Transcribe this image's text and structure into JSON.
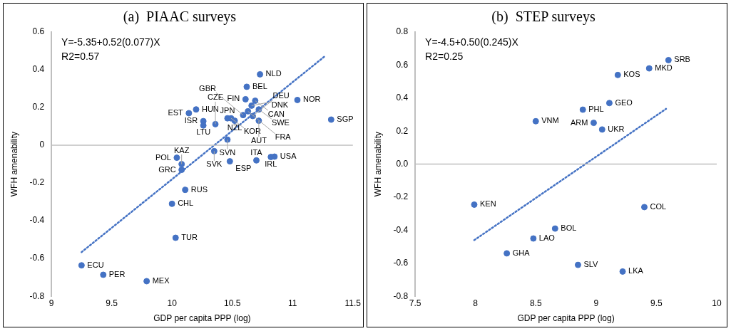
{
  "chart_data": [
    {
      "type": "scatter",
      "title": "(a)  PIAAC surveys",
      "xlabel": "GDP per capita PPP (log)",
      "ylabel": "WFH amenability",
      "xlim": [
        9,
        11.5
      ],
      "xticks": [
        9,
        9.5,
        10,
        10.5,
        11,
        11.5
      ],
      "ylim": [
        -0.8,
        0.6
      ],
      "yticks": [
        -0.8,
        -0.6,
        -0.4,
        -0.2,
        0,
        0.2,
        0.4,
        0.6
      ],
      "grid": false,
      "legend": false,
      "ref_lines": [
        {
          "axis": "y",
          "value": 0,
          "color": "#bfbfbf"
        }
      ],
      "series": [
        {
          "type": "scatter",
          "color": "#4472c4",
          "marker": "circle",
          "x": [
            10.73,
            10.62,
            10.61,
            10.69,
            10.66,
            10.72,
            11.04,
            11.32,
            10.2,
            10.14,
            10.26,
            10.26,
            10.36,
            10.46,
            10.49,
            10.52,
            10.63,
            10.67,
            10.59,
            10.72,
            10.46,
            10.35,
            10.04,
            10.08,
            10.08,
            10.48,
            10.7,
            10.82,
            10.85,
            10.11,
            10.0,
            10.03,
            9.25,
            9.43,
            9.79
          ],
          "values": [
            0.376,
            0.31,
            0.244,
            0.236,
            0.21,
            0.19,
            0.24,
            0.136,
            0.19,
            0.17,
            0.128,
            0.105,
            0.112,
            0.143,
            0.143,
            0.13,
            0.18,
            0.155,
            0.16,
            0.13,
            0.03,
            -0.031,
            -0.066,
            -0.1,
            -0.13,
            -0.085,
            -0.08,
            -0.062,
            -0.06,
            -0.236,
            -0.31,
            -0.49,
            -0.636,
            -0.686,
            -0.72
          ]
        },
        {
          "type": "line",
          "color": "#4472c4",
          "marker": "none",
          "line_style": "dotted",
          "x": [
            9.25,
            11.27
          ],
          "values": [
            -0.566,
            0.473
          ]
        }
      ],
      "annotations": [
        "Y=-5.35+0.52(0.077)X",
        "R2=0.57",
        {
          "text": "NLD",
          "x": 10.73,
          "y": 0.376
        },
        {
          "text": "BEL",
          "x": 10.62,
          "y": 0.31
        },
        {
          "text": "FIN",
          "x": 10.61,
          "y": 0.244
        },
        {
          "text": "CAN",
          "x": 10.69,
          "y": 0.236
        },
        {
          "text": "DNK",
          "x": 10.66,
          "y": 0.21
        },
        {
          "text": "SWE",
          "x": 10.72,
          "y": 0.19
        },
        {
          "text": "NOR",
          "x": 11.04,
          "y": 0.24
        },
        {
          "text": "SGP",
          "x": 11.32,
          "y": 0.136
        },
        {
          "text": "HUN",
          "x": 10.2,
          "y": 0.19
        },
        {
          "text": "EST",
          "x": 10.14,
          "y": 0.17
        },
        {
          "text": "ISR",
          "x": 10.26,
          "y": 0.128
        },
        {
          "text": "LTU",
          "x": 10.26,
          "y": 0.105
        },
        {
          "text": "CZE",
          "x": 10.36,
          "y": 0.112
        },
        {
          "text": "JPN",
          "x": 10.46,
          "y": 0.143
        },
        {
          "text": "KOR",
          "x": 10.49,
          "y": 0.143
        },
        {
          "text": "NZL",
          "x": 10.52,
          "y": 0.13
        },
        {
          "text": "FRA",
          "x": 10.63,
          "y": 0.18
        },
        {
          "text": "DEU",
          "x": 10.67,
          "y": 0.155
        },
        {
          "text": "GBR",
          "x": 10.59,
          "y": 0.16
        },
        {
          "text": "AUT",
          "x": 10.72,
          "y": 0.13
        },
        {
          "text": "SVN",
          "x": 10.46,
          "y": 0.03
        },
        {
          "text": "SVK",
          "x": 10.35,
          "y": -0.031
        },
        {
          "text": "POL",
          "x": 10.04,
          "y": -0.066
        },
        {
          "text": "KAZ",
          "x": 10.08,
          "y": -0.1
        },
        {
          "text": "GRC",
          "x": 10.08,
          "y": -0.13
        },
        {
          "text": "ESP",
          "x": 10.48,
          "y": -0.085
        },
        {
          "text": "ITA",
          "x": 10.7,
          "y": -0.08
        },
        {
          "text": "IRL",
          "x": 10.82,
          "y": -0.062
        },
        {
          "text": "USA",
          "x": 10.85,
          "y": -0.06
        },
        {
          "text": "RUS",
          "x": 10.11,
          "y": -0.236
        },
        {
          "text": "CHL",
          "x": 10.0,
          "y": -0.31
        },
        {
          "text": "TUR",
          "x": 10.03,
          "y": -0.49
        },
        {
          "text": "ECU",
          "x": 9.25,
          "y": -0.636
        },
        {
          "text": "PER",
          "x": 9.43,
          "y": -0.686
        },
        {
          "text": "MEX",
          "x": 9.79,
          "y": -0.72
        }
      ]
    },
    {
      "type": "scatter",
      "title": "(b)  STEP surveys",
      "xlabel": "GDP per capita PPP (log)",
      "ylabel": "WFH amenability",
      "xlim": [
        7.5,
        10
      ],
      "xticks": [
        7.5,
        8,
        8.5,
        9,
        9.5,
        10
      ],
      "ylim": [
        -0.8,
        0.8
      ],
      "yticks": [
        -0.8,
        -0.6,
        -0.4,
        -0.2,
        {
          "value": 0,
          "label": "0.0"
        },
        0.2,
        0.4,
        0.6,
        0.8
      ],
      "grid": false,
      "legend": false,
      "ref_lines": [
        {
          "axis": "y",
          "value": 0,
          "color": "#bfbfbf"
        }
      ],
      "series": [
        {
          "type": "scatter",
          "color": "#4472c4",
          "marker": "circle",
          "x": [
            9.6,
            9.44,
            9.18,
            9.11,
            8.89,
            8.5,
            8.98,
            9.05,
            7.99,
            9.4,
            8.66,
            8.48,
            8.26,
            8.85,
            9.22
          ],
          "values": [
            0.63,
            0.58,
            0.54,
            0.37,
            0.33,
            0.26,
            0.25,
            0.21,
            -0.245,
            -0.26,
            -0.39,
            -0.45,
            -0.54,
            -0.61,
            -0.65
          ]
        },
        {
          "type": "line",
          "color": "#4472c4",
          "marker": "none",
          "line_style": "dotted",
          "x": [
            7.99,
            9.58
          ],
          "values": [
            -0.46,
            0.335
          ]
        }
      ],
      "annotations": [
        "Y=-4.5+0.50(0.245)X",
        "R2=0.25",
        {
          "text": "SRB",
          "x": 9.6,
          "y": 0.63
        },
        {
          "text": "MKD",
          "x": 9.44,
          "y": 0.58
        },
        {
          "text": "KOS",
          "x": 9.18,
          "y": 0.54
        },
        {
          "text": "GEO",
          "x": 9.11,
          "y": 0.37
        },
        {
          "text": "PHL",
          "x": 8.89,
          "y": 0.33
        },
        {
          "text": "VNM",
          "x": 8.5,
          "y": 0.26
        },
        {
          "text": "ARM",
          "x": 8.98,
          "y": 0.25
        },
        {
          "text": "UKR",
          "x": 9.05,
          "y": 0.21
        },
        {
          "text": "KEN",
          "x": 7.99,
          "y": -0.245
        },
        {
          "text": "COL",
          "x": 9.4,
          "y": -0.26
        },
        {
          "text": "BOL",
          "x": 8.66,
          "y": -0.39
        },
        {
          "text": "LAO",
          "x": 8.48,
          "y": -0.45
        },
        {
          "text": "GHA",
          "x": 8.26,
          "y": -0.54
        },
        {
          "text": "SLV",
          "x": 8.85,
          "y": -0.61
        },
        {
          "text": "LKA",
          "x": 9.22,
          "y": -0.65
        }
      ]
    }
  ]
}
